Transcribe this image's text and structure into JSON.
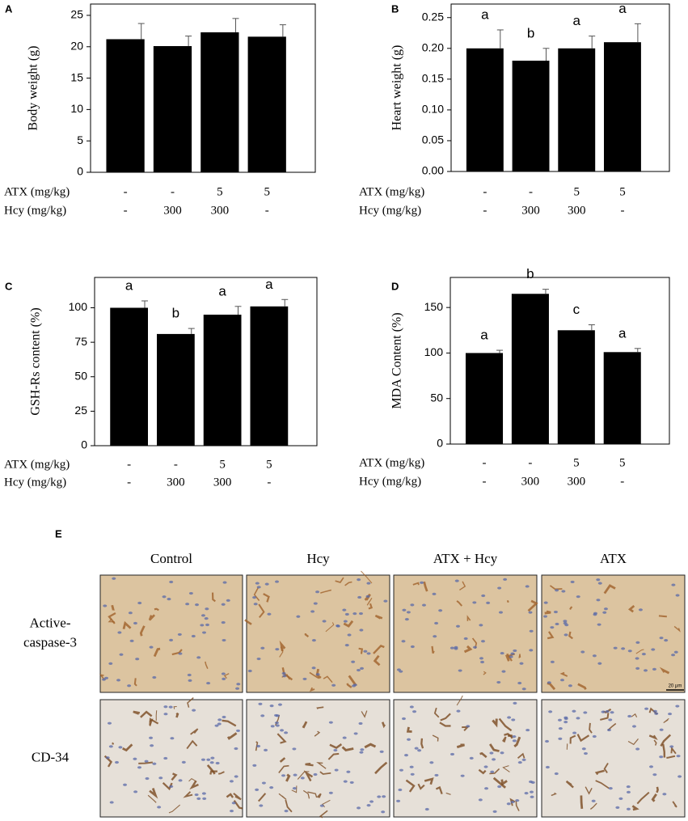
{
  "chart_data": [
    {
      "type": "bar",
      "panel": "A",
      "ylabel": "Body weight (g)",
      "color": "#000000",
      "values": [
        21.2,
        20.1,
        22.3,
        21.6
      ],
      "errors": [
        2.5,
        1.6,
        2.2,
        1.9
      ],
      "ylim": [
        0,
        26.8
      ],
      "yticks": [
        0,
        5,
        10,
        15,
        20,
        25
      ],
      "groups": [
        {
          "label": "ATX (mg/kg)",
          "values": [
            "-",
            "-",
            "5",
            "5"
          ]
        },
        {
          "label": "Hcy (mg/kg)",
          "values": [
            "-",
            "300",
            "300",
            "-"
          ]
        }
      ]
    },
    {
      "type": "bar",
      "panel": "B",
      "ylabel": "Heart weight (g)",
      "color": "#000000",
      "values": [
        0.2,
        0.18,
        0.2,
        0.21
      ],
      "errors": [
        0.03,
        0.02,
        0.02,
        0.03
      ],
      "letters": [
        "a",
        "b",
        "a",
        "a"
      ],
      "ylim": [
        0,
        0.272
      ],
      "yticks": [
        {
          "value": 0,
          "label": "0.00"
        },
        {
          "value": 0.05,
          "label": "0.05"
        },
        {
          "value": 0.1,
          "label": "0.10"
        },
        {
          "value": 0.15,
          "label": "0.15"
        },
        {
          "value": 0.2,
          "label": "0.20"
        },
        {
          "value": 0.25,
          "label": "0.25"
        }
      ],
      "groups": [
        {
          "label": "ATX (mg/kg)",
          "values": [
            "-",
            "-",
            "5",
            "5"
          ]
        },
        {
          "label": "Hcy (mg/kg)",
          "values": [
            "-",
            "300",
            "300",
            "-"
          ]
        }
      ]
    },
    {
      "type": "bar",
      "panel": "C",
      "ylabel": "GSH-Rs content (%)",
      "color": "#000000",
      "values": [
        100,
        81,
        95,
        101
      ],
      "errors": [
        5,
        4,
        6,
        5
      ],
      "letters": [
        "a",
        "b",
        "a",
        "a"
      ],
      "ylim": [
        0,
        122
      ],
      "yticks": [
        0,
        25,
        50,
        75,
        100
      ],
      "groups": [
        {
          "label": "ATX (mg/kg)",
          "values": [
            "-",
            "-",
            "5",
            "5"
          ]
        },
        {
          "label": "Hcy (mg/kg)",
          "values": [
            "-",
            "300",
            "300",
            "-"
          ]
        }
      ]
    },
    {
      "type": "bar",
      "panel": "D",
      "ylabel": "MDA Content (%)",
      "color": "#000000",
      "values": [
        100,
        165,
        125,
        101
      ],
      "errors": [
        3,
        5,
        6,
        4
      ],
      "letters": [
        "a",
        "b",
        "c",
        "a"
      ],
      "ylim": [
        0,
        183
      ],
      "yticks": [
        0,
        50,
        100,
        150
      ],
      "groups": [
        {
          "label": "ATX (mg/kg)",
          "values": [
            "-",
            "-",
            "5",
            "5"
          ]
        },
        {
          "label": "Hcy (mg/kg)",
          "values": [
            "-",
            "300",
            "300",
            "-"
          ]
        }
      ]
    }
  ],
  "image_panel": {
    "label": "E",
    "columns": [
      "Control",
      "Hcy",
      "ATX + Hcy",
      "ATX"
    ],
    "rows": [
      {
        "lines": [
          "Active-",
          "caspase-3"
        ]
      },
      {
        "lines": [
          "CD-34"
        ]
      }
    ],
    "scale_bar": "20 μm"
  }
}
